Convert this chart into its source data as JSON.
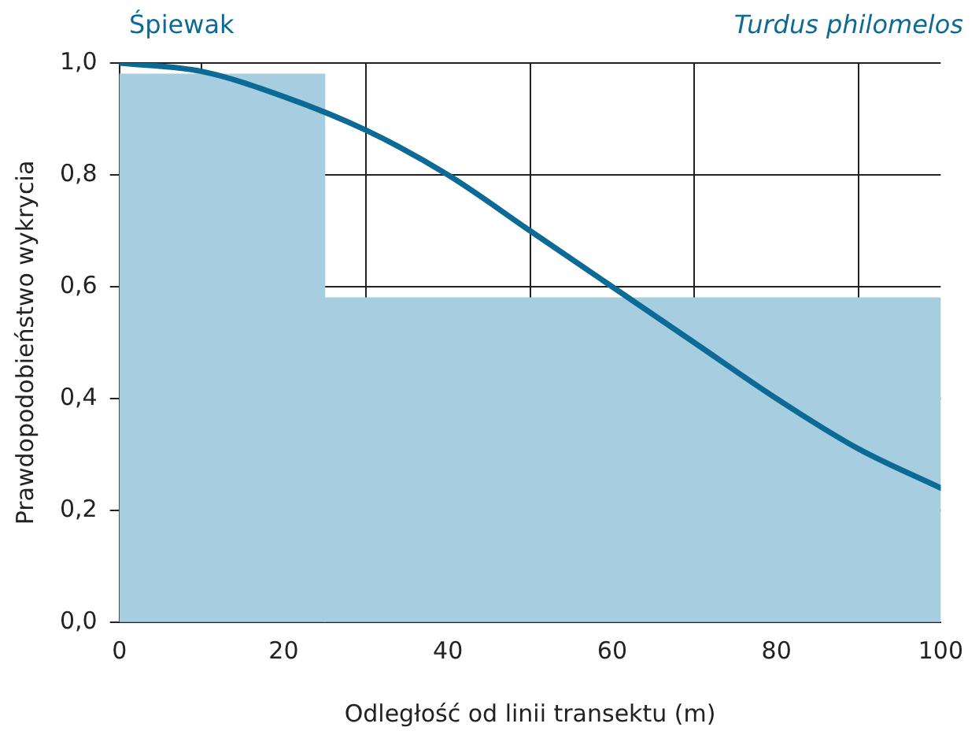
{
  "chart_data": {
    "type": "histogram",
    "title": "Śpiewak",
    "subtitle": "Turdus philomelos",
    "xlabel": "Odległość od linii transektu (m)",
    "ylabel": "Prawdopodobieństwo wykrycia",
    "bins": [
      0,
      25,
      100
    ],
    "values": [
      0.98,
      0.58
    ],
    "color": "#a7cde0",
    "series": [
      {
        "type": "line",
        "color": "#0b6a96",
        "x": [
          0,
          10,
          20,
          30,
          40,
          50,
          60,
          70,
          80,
          90,
          100
        ],
        "values": [
          1.0,
          0.985,
          0.94,
          0.88,
          0.8,
          0.7,
          0.6,
          0.5,
          0.4,
          0.31,
          0.24
        ]
      }
    ],
    "xlim": [
      0,
      100
    ],
    "ylim": [
      0,
      1
    ],
    "xticks": [
      0,
      20,
      40,
      60,
      80,
      100
    ],
    "yticks": [
      {
        "value": 0,
        "label": "0,0"
      },
      {
        "value": 0.2,
        "label": "0,2"
      },
      {
        "value": 0.4,
        "label": "0,4"
      },
      {
        "value": 0.6,
        "label": "0,6"
      },
      {
        "value": 0.8,
        "label": "0,8"
      },
      {
        "value": 1,
        "label": "1,0"
      }
    ],
    "grid": true,
    "legend": false,
    "marker": "none",
    "line_style": "solid"
  }
}
